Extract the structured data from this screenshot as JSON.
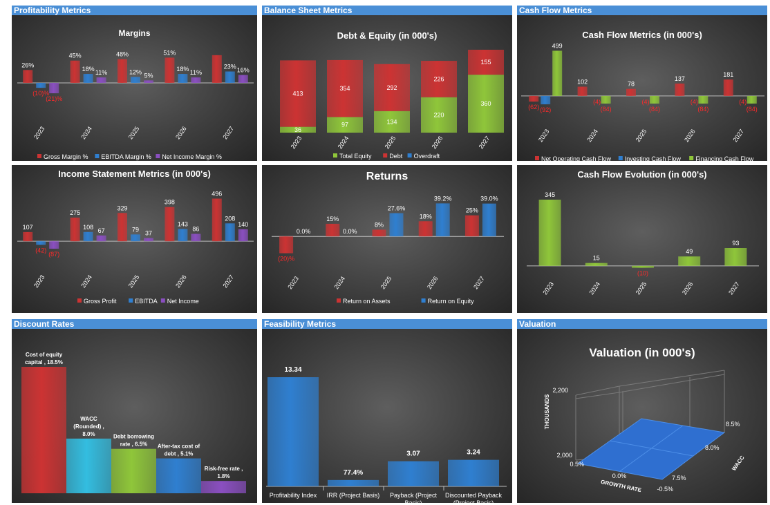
{
  "sections": {
    "profitability": "Profitability Metrics",
    "balance": "Balance Sheet Metrics",
    "cashflow": "Cash Flow Metrics",
    "discount": "Discount Rates",
    "feasibility": "Feasibility Metrics",
    "valuation": "Valuation"
  },
  "colors": {
    "red": "#cc3333",
    "blue": "#2f7fd0",
    "purple": "#8a4fc0",
    "green": "#8fc63a",
    "cyan": "#33bde0",
    "header": "#4a8fd6",
    "neg_label": "#ff2a2a"
  },
  "chart_data": [
    {
      "id": "margins",
      "type": "bar",
      "title": "Margins",
      "categories": [
        "2023",
        "2024",
        "2025",
        "2026",
        "2027"
      ],
      "series": [
        {
          "name": "Gross Margin %",
          "color": "red",
          "values": [
            26,
            45,
            48,
            51,
            56
          ],
          "labels": [
            "26%",
            "45%",
            "48%",
            "51%",
            ""
          ]
        },
        {
          "name": "EBITDA Margin %",
          "color": "blue",
          "values": [
            -10,
            18,
            12,
            18,
            23
          ],
          "labels": [
            "(10)%",
            "18%",
            "12%",
            "18%",
            "23%"
          ]
        },
        {
          "name": "Net Income Margin %",
          "color": "purple",
          "values": [
            -21,
            11,
            5,
            11,
            16
          ],
          "labels": [
            "(21)%",
            "11%",
            "5%",
            "11%",
            "16%"
          ]
        }
      ]
    },
    {
      "id": "debt_equity",
      "type": "bar",
      "stacked": true,
      "title": "Debt & Equity (in 000's)",
      "categories": [
        "2023",
        "2024",
        "2025",
        "2026",
        "2027"
      ],
      "series": [
        {
          "name": "Total Equity",
          "color": "green",
          "values": [
            36,
            97,
            134,
            220,
            360
          ],
          "labels": [
            "36",
            "97",
            "134",
            "220",
            "360"
          ]
        },
        {
          "name": "Debt",
          "color": "red",
          "values": [
            413,
            354,
            292,
            226,
            155
          ],
          "labels": [
            "413",
            "354",
            "292",
            "226",
            "155"
          ]
        },
        {
          "name": "Overdraft",
          "color": "blue",
          "values": [
            0,
            0,
            0,
            0,
            0
          ],
          "labels": [
            "",
            "",
            "",
            "",
            ""
          ]
        }
      ]
    },
    {
      "id": "cash_flow",
      "type": "bar",
      "title": "Cash Flow Metrics (in 000's)",
      "categories": [
        "2023",
        "2024",
        "2025",
        "2026",
        "2027"
      ],
      "series": [
        {
          "name": "Net Operating Cash Flow",
          "color": "red",
          "values": [
            -62,
            102,
            78,
            137,
            181
          ],
          "labels": [
            "(62)",
            "102",
            "78",
            "137",
            "181"
          ]
        },
        {
          "name": "Investing Cash Flow",
          "color": "blue",
          "values": [
            -92,
            0,
            0,
            0,
            0
          ],
          "labels": [
            "(92)",
            "",
            "",
            "",
            ""
          ]
        },
        {
          "name": "Financing Cash Flow",
          "color": "green",
          "values": [
            499,
            -84,
            -84,
            -84,
            -84
          ],
          "labels": [
            "499",
            "(84)",
            "(84)",
            "(84)",
            "(84)"
          ]
        },
        {
          "name": "",
          "color": "none",
          "values": [
            0,
            -4,
            -4,
            -4,
            -4
          ],
          "labels": [
            "",
            "(4)",
            "(4)",
            "(4)",
            "(4)"
          ]
        }
      ]
    },
    {
      "id": "income",
      "type": "bar",
      "title": "Income Statement Metrics (in 000's)",
      "categories": [
        "2023",
        "2024",
        "2025",
        "2026",
        "2027"
      ],
      "series": [
        {
          "name": "Gross Profit",
          "color": "red",
          "values": [
            107,
            275,
            329,
            398,
            496
          ],
          "labels": [
            "107",
            "275",
            "329",
            "398",
            "496"
          ]
        },
        {
          "name": "EBITDA",
          "color": "blue",
          "values": [
            -42,
            108,
            79,
            143,
            208
          ],
          "labels": [
            "(42)",
            "108",
            "79",
            "143",
            "208"
          ]
        },
        {
          "name": "Net Income",
          "color": "purple",
          "values": [
            -87,
            67,
            37,
            86,
            140
          ],
          "labels": [
            "(87)",
            "67",
            "37",
            "86",
            "140"
          ]
        }
      ]
    },
    {
      "id": "returns",
      "type": "bar",
      "title": "Returns",
      "categories": [
        "2023",
        "2024",
        "2025",
        "2026",
        "2027"
      ],
      "series": [
        {
          "name": "Return on Assets",
          "color": "red",
          "values": [
            -20,
            15,
            8,
            18,
            25
          ],
          "labels": [
            "(20)%",
            "15%",
            "8%",
            "18%",
            "25%"
          ]
        },
        {
          "name": "Return on Equity",
          "color": "blue",
          "values": [
            0,
            0,
            27.6,
            39.2,
            39.0
          ],
          "labels": [
            "0.0%",
            "0.0%",
            "27.6%",
            "39.2%",
            "39.0%"
          ]
        }
      ]
    },
    {
      "id": "cf_evolution",
      "type": "bar",
      "title": "Cash Flow Evolution (in 000's)",
      "categories": [
        "2023",
        "2024",
        "2025",
        "2026",
        "2027"
      ],
      "series": [
        {
          "name": "",
          "color": "green",
          "values": [
            345,
            15,
            -10,
            49,
            93
          ],
          "labels": [
            "345",
            "15",
            "(10)",
            "49",
            "93"
          ]
        }
      ]
    },
    {
      "id": "discount",
      "type": "bar",
      "series": [
        {
          "name": "Cost of equity capital",
          "value": 18.5,
          "label": [
            "Cost of equity",
            "capital , 18.5%"
          ],
          "color": "red"
        },
        {
          "name": "WACC (Rounded)",
          "value": 8.0,
          "label": [
            "WACC",
            "(Rounded) ,",
            "8.0%"
          ],
          "color": "cyan"
        },
        {
          "name": "Debt borrowing rate",
          "value": 6.5,
          "label": [
            "Debt borrowing",
            "rate , 6.5%"
          ],
          "color": "green"
        },
        {
          "name": "After-tax cost of debt",
          "value": 5.1,
          "label": [
            "After-tax cost of",
            "debt , 5.1%"
          ],
          "color": "blue"
        },
        {
          "name": "Risk-free rate",
          "value": 1.8,
          "label": [
            "Risk-free rate ,",
            "1.8%"
          ],
          "color": "purple"
        }
      ]
    },
    {
      "id": "feasibility",
      "type": "bar",
      "categories": [
        [
          "Profitability Index"
        ],
        [
          "IRR (Project Basis)"
        ],
        [
          "Payback  (Project",
          "Basis)"
        ],
        [
          "Discounted Payback",
          "(Project Basis)"
        ]
      ],
      "values": [
        13.34,
        0.774,
        3.07,
        3.24
      ],
      "labels": [
        "13.34",
        "77.4%",
        "3.07",
        "3.24"
      ]
    },
    {
      "id": "valuation",
      "type": "surface",
      "title": "Valuation (in 000's)",
      "zlabel": "THOUSANDS",
      "xlabel": "GROWTH RATE",
      "ylabel": "WACC",
      "z_ticks": [
        "2,200",
        "2,000"
      ],
      "x_ticks": [
        "0.5%",
        "0.0%",
        "-0.5%"
      ],
      "y_ticks": [
        "8.5%",
        "8.0%",
        "7.5%"
      ]
    }
  ]
}
